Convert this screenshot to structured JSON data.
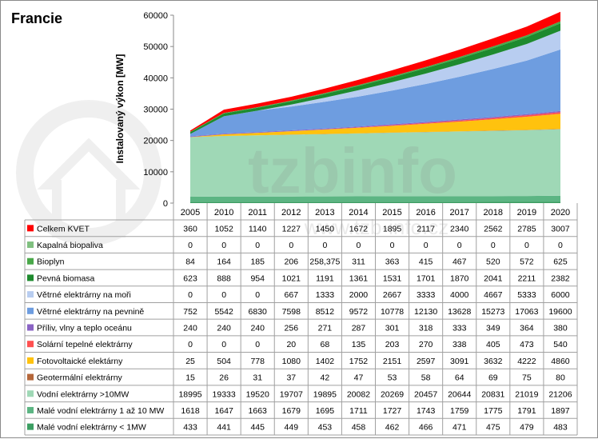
{
  "chart_data": {
    "type": "area",
    "title": "Francie",
    "ylabel": "Instalovaný výkon [MW]",
    "ylim": [
      0,
      60000
    ],
    "yticks": [
      0,
      10000,
      20000,
      30000,
      40000,
      50000,
      60000
    ],
    "ytick_labels": [
      "0",
      "10000",
      "20000",
      "30000",
      "40000",
      "50000",
      "60000"
    ],
    "stacked": true,
    "grid": false,
    "legend": "table-left",
    "categories": [
      "2005",
      "2010",
      "2011",
      "2012",
      "2013",
      "2014",
      "2015",
      "2016",
      "2017",
      "2018",
      "2019",
      "2020"
    ],
    "series": [
      {
        "name": "Celkem KVET",
        "color": "#ff0000",
        "values": [
          360,
          1052,
          1140,
          1227,
          1450,
          1672,
          1895,
          2117,
          2340,
          2562,
          2785,
          3007
        ]
      },
      {
        "name": "Kapalná biopaliva",
        "color": "#7fbf7f",
        "values": [
          0,
          0,
          0,
          0,
          0,
          0,
          0,
          0,
          0,
          0,
          0,
          0
        ]
      },
      {
        "name": "Bioplyn",
        "color": "#4aa84a",
        "values": [
          84,
          164,
          185,
          206,
          258.375,
          311,
          363,
          415,
          467,
          520,
          572,
          625
        ]
      },
      {
        "name": "Pevná biomasa",
        "color": "#1e8a2e",
        "values": [
          623,
          888,
          954,
          1021,
          1191,
          1361,
          1531,
          1701,
          1870,
          2041,
          2211,
          2382
        ]
      },
      {
        "name": "Větrné elektrárny na moři",
        "color": "#b8cdf0",
        "values": [
          0,
          0,
          0,
          667,
          1333,
          2000,
          2667,
          3333,
          4000,
          4667,
          5333,
          6000
        ]
      },
      {
        "name": "Větrné elektrárny na pevnině",
        "color": "#6e9de0",
        "values": [
          752,
          5542,
          6830,
          7598,
          8512,
          9572,
          10778,
          12130,
          13628,
          15273,
          17063,
          19600
        ]
      },
      {
        "name": "Příliv, vlny a teplo oceánu",
        "color": "#8a63c4",
        "values": [
          240,
          240,
          240,
          256,
          271,
          287,
          301,
          318,
          333,
          349,
          364,
          380
        ]
      },
      {
        "name": "Solární tepelné elektrárny",
        "color": "#ff5050",
        "values": [
          0,
          0,
          0,
          20,
          68,
          135,
          203,
          270,
          338,
          405,
          473,
          540
        ]
      },
      {
        "name": "Fotovoltaické elektárny",
        "color": "#ffc20e",
        "values": [
          25,
          504,
          778,
          1080,
          1402,
          1752,
          2151,
          2597,
          3091,
          3632,
          4222,
          4860
        ]
      },
      {
        "name": "Geotermální elektrárny",
        "color": "#b5673a",
        "values": [
          15,
          26,
          31,
          37,
          42,
          47,
          53,
          58,
          64,
          69,
          75,
          80
        ]
      },
      {
        "name": "Vodní elektrárny >10MW",
        "color": "#9fd8b6",
        "values": [
          18995,
          19333,
          19520,
          19707,
          19895,
          20082,
          20269,
          20457,
          20644,
          20831,
          21019,
          21206
        ]
      },
      {
        "name": "Malé vodní elektrárny 1 až 10 MW",
        "color": "#5cb583",
        "values": [
          1618,
          1647,
          1663,
          1679,
          1695,
          1711,
          1727,
          1743,
          1759,
          1775,
          1791,
          1897
        ]
      },
      {
        "name": "Malé vodní elektrárny < 1MW",
        "color": "#3c9e62",
        "values": [
          433,
          441,
          445,
          449,
          453,
          458,
          462,
          466,
          471,
          475,
          479,
          483
        ]
      }
    ],
    "table": {
      "cells": [
        [
          "360",
          "1052",
          "1140",
          "1227",
          "1450",
          "1672",
          "1895",
          "2117",
          "2340",
          "2562",
          "2785",
          "3007"
        ],
        [
          "0",
          "0",
          "0",
          "0",
          "0",
          "0",
          "0",
          "0",
          "0",
          "0",
          "0",
          "0"
        ],
        [
          "84",
          "164",
          "185",
          "206",
          "258,375",
          "311",
          "363",
          "415",
          "467",
          "520",
          "572",
          "625"
        ],
        [
          "623",
          "888",
          "954",
          "1021",
          "1191",
          "1361",
          "1531",
          "1701",
          "1870",
          "2041",
          "2211",
          "2382"
        ],
        [
          "0",
          "0",
          "0",
          "667",
          "1333",
          "2000",
          "2667",
          "3333",
          "4000",
          "4667",
          "5333",
          "6000"
        ],
        [
          "752",
          "5542",
          "6830",
          "7598",
          "8512",
          "9572",
          "10778",
          "12130",
          "13628",
          "15273",
          "17063",
          "19600"
        ],
        [
          "240",
          "240",
          "240",
          "256",
          "271",
          "287",
          "301",
          "318",
          "333",
          "349",
          "364",
          "380"
        ],
        [
          "0",
          "0",
          "0",
          "20",
          "68",
          "135",
          "203",
          "270",
          "338",
          "405",
          "473",
          "540"
        ],
        [
          "25",
          "504",
          "778",
          "1080",
          "1402",
          "1752",
          "2151",
          "2597",
          "3091",
          "3632",
          "4222",
          "4860"
        ],
        [
          "15",
          "26",
          "31",
          "37",
          "42",
          "47",
          "53",
          "58",
          "64",
          "69",
          "75",
          "80"
        ],
        [
          "18995",
          "19333",
          "19520",
          "19707",
          "19895",
          "20082",
          "20269",
          "20457",
          "20644",
          "20831",
          "21019",
          "21206"
        ],
        [
          "1618",
          "1647",
          "1663",
          "1679",
          "1695",
          "1711",
          "1727",
          "1743",
          "1759",
          "1775",
          "1791",
          "1897"
        ],
        [
          "433",
          "441",
          "445",
          "449",
          "453",
          "458",
          "462",
          "466",
          "471",
          "475",
          "479",
          "483"
        ]
      ]
    }
  },
  "watermark": {
    "text": "tzbinfo",
    "subtext": "www.tzb-info.cz",
    "icon": "house-icon"
  }
}
